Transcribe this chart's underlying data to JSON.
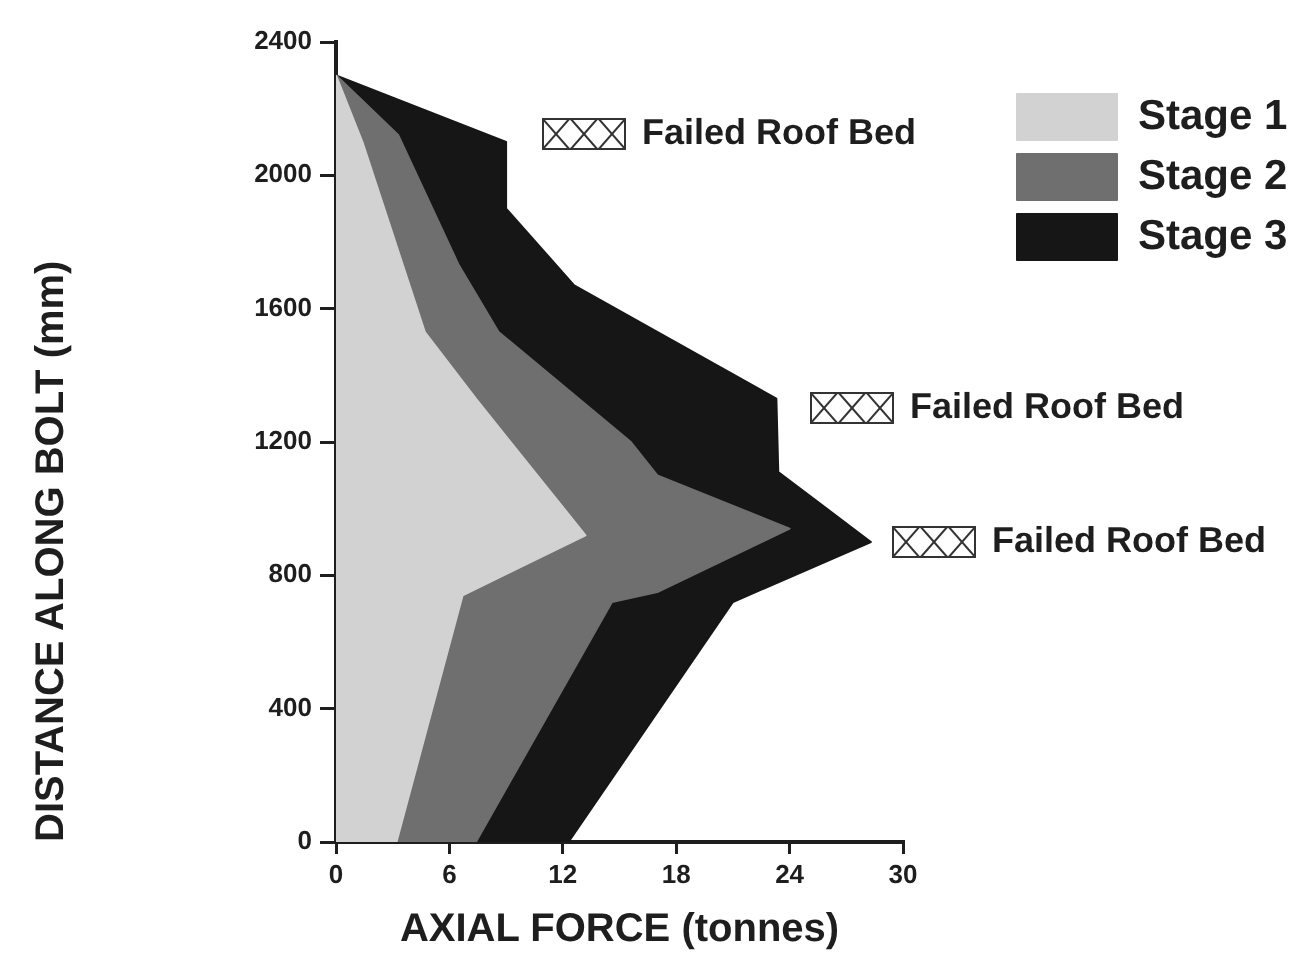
{
  "chart_data": {
    "type": "area",
    "orientation": "horizontal",
    "xlabel": "AXIAL FORCE (tonnes)",
    "ylabel": "DISTANCE ALONG BOLT (mm)",
    "xlim": [
      0,
      30
    ],
    "xticks": [
      0,
      6,
      12,
      18,
      24,
      30
    ],
    "ylim": [
      0,
      2400
    ],
    "yticks": [
      0,
      400,
      800,
      1200,
      1600,
      2000,
      2400
    ],
    "legend": "top right",
    "series": [
      {
        "name": "Stage 1",
        "color": "#d2d2d2",
        "x": [
          2300,
          2100,
          1530,
          1330,
          920,
          740,
          0
        ],
        "values": [
          0,
          1.4,
          4.7,
          7.4,
          13.2,
          6.7,
          3.2
        ]
      },
      {
        "name": "Stage 2",
        "color": "#6f6f6f",
        "x": [
          2300,
          2120,
          1730,
          1530,
          1200,
          1100,
          940,
          750,
          720,
          0
        ],
        "values": [
          0,
          3.3,
          6.5,
          8.6,
          15.6,
          17,
          24,
          17,
          14.6,
          7.4
        ]
      },
      {
        "name": "Stage 3",
        "color": "#161616",
        "x": [
          2300,
          2100,
          1900,
          1670,
          1330,
          1110,
          900,
          720,
          0
        ],
        "values": [
          0,
          9,
          9,
          12.6,
          23.3,
          23.4,
          28.3,
          21,
          12.3
        ]
      }
    ],
    "annotations": [
      "Failed Roof Bed",
      "Failed Roof Bed",
      "Failed Roof Bed"
    ]
  }
}
